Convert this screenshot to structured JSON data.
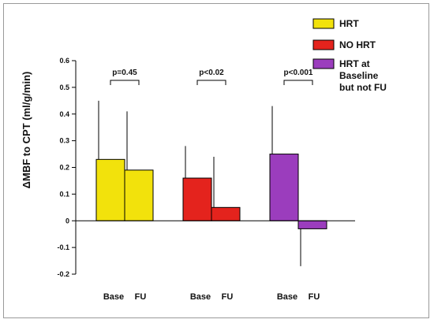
{
  "chart_data": {
    "type": "bar",
    "ylabel": "ΔMBF to CPT (ml/g/min)",
    "xlabel": "",
    "ylim": [
      -0.2,
      0.6
    ],
    "yticks": [
      -0.2,
      -0.1,
      0,
      0.1,
      0.2,
      0.3,
      0.4,
      0.5,
      0.6
    ],
    "ytick_labels": [
      "-0.2",
      "-0.1",
      "0",
      "0.1",
      "0.2",
      "0.3",
      "0.4",
      "0.5",
      "0.6"
    ],
    "x_tick_labels": [
      "Base",
      "FU",
      "Base",
      "FU",
      "Base",
      "FU"
    ],
    "grid": false,
    "legend_position": "top-right",
    "series": [
      {
        "name": "HRT",
        "color": "#f2e20c",
        "values": [
          0.23,
          0.19
        ],
        "error_upper": [
          0.45,
          0.41
        ]
      },
      {
        "name": "NO HRT",
        "color": "#e4231d",
        "values": [
          0.16,
          0.05
        ],
        "error_upper": [
          0.28,
          0.24
        ]
      },
      {
        "name": "HRT at Baseline but not FU",
        "name_lines": [
          "HRT at",
          "Baseline",
          "but not FU"
        ],
        "color": "#9b3dbd",
        "values": [
          0.25,
          -0.03
        ],
        "error_upper": [
          0.43,
          null
        ],
        "error_lower": [
          null,
          -0.17
        ]
      }
    ],
    "annotations": [
      "p=0.45",
      "p<0.02",
      "p<0.001"
    ]
  }
}
